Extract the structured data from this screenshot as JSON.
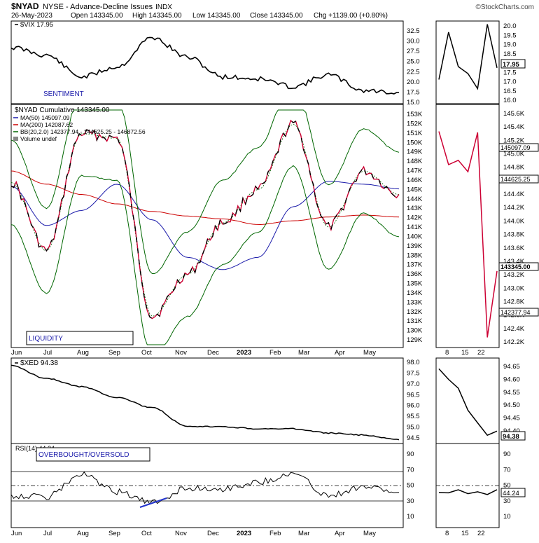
{
  "header": {
    "symbol": "$NYAD",
    "name": "NYSE - Advance-Decline Issues",
    "exchange": "INDX",
    "date": "26-May-2023",
    "open": "Open 143345.00",
    "high": "High 143345.00",
    "low": "Low 143345.00",
    "close": "Close 143345.00",
    "chg": "Chg +1139.00 (+0.80%)",
    "watermark": "©StockCharts.com"
  },
  "panels": {
    "vix": {
      "legend": "$VIX 17.95",
      "tag": "SENTIMENT",
      "last_label": "17.95",
      "ticks_main": [
        "32.5",
        "30.0",
        "27.5",
        "25.0",
        "22.5",
        "20.0",
        "17.5",
        "15.0"
      ],
      "ticks_zoom": [
        "20.0",
        "19.5",
        "19.0",
        "18.5",
        "18.0",
        "17.5",
        "17.0",
        "16.5",
        "16.0"
      ]
    },
    "nyad": {
      "legend_title": "$NYAD Cumulative 143345.00",
      "legend_ma50": "MA(50) 145097.09",
      "legend_ma200": "MA(200) 142087.62",
      "legend_bb": "BB(20,2.0) 142377.94 - 144625.25 - 146872.56",
      "legend_vol": "Volume undef",
      "tag": "LIQUIDITY",
      "ticks_main": [
        "153K",
        "152K",
        "151K",
        "150K",
        "149K",
        "148K",
        "147K",
        "146K",
        "145K",
        "144K",
        "143K",
        "142K",
        "141K",
        "140K",
        "139K",
        "138K",
        "137K",
        "136K",
        "135K",
        "134K",
        "133K",
        "132K",
        "131K",
        "130K",
        "129K"
      ],
      "ticks_zoom": [
        "145.6K",
        "145.4K",
        "145.2K",
        "145.0K",
        "144.8K",
        "144.6K",
        "144.4K",
        "144.2K",
        "144.0K",
        "143.8K",
        "143.6K",
        "143.4K",
        "143.2K",
        "143.0K",
        "142.8K",
        "142.6K",
        "142.4K",
        "142.2K"
      ],
      "zoom_labels": [
        "145097.09",
        "144625.25",
        "143345.00",
        "142377.94"
      ]
    },
    "xed": {
      "legend": "$XED 94.38",
      "last_label": "94.38",
      "ticks_main": [
        "98.0",
        "97.5",
        "97.0",
        "96.5",
        "96.0",
        "95.5",
        "95.0",
        "94.5"
      ],
      "ticks_zoom": [
        "94.65",
        "94.60",
        "94.55",
        "94.50",
        "94.45",
        "94.40"
      ]
    },
    "rsi": {
      "legend": "RSI(14) 44.24",
      "tag": "OVERBOUGHT/OVERSOLD",
      "last_label": "44.24",
      "ticks": [
        "90",
        "70",
        "50",
        "30",
        "10"
      ]
    }
  },
  "x_axis": {
    "main": [
      "Jun",
      "Jul",
      "Aug",
      "Sep",
      "Oct",
      "Nov",
      "Dec",
      "2023",
      "Feb",
      "Mar",
      "Apr",
      "May"
    ],
    "zoom": [
      "8",
      "15",
      "22"
    ]
  },
  "colors": {
    "price": "#000000",
    "ad_line": "#cc0033",
    "ma50": "#1a1aaa",
    "ma200": "#cc0000",
    "bb": "#006600",
    "rsi_fill_overbought": "#2e7d32",
    "rsi_fill_oversold": "#8b0000",
    "trendline": "#2233cc",
    "tag_text": "#1a1aaa"
  },
  "chart_data": [
    {
      "type": "line",
      "title": "$VIX 17.95",
      "x": [
        "Jun",
        "Jul",
        "Aug",
        "Sep",
        "Oct",
        "Nov",
        "Dec",
        "2023",
        "Feb",
        "Mar",
        "Apr",
        "May"
      ],
      "series": [
        {
          "name": "$VIX",
          "values": [
            29.0,
            27.0,
            21.5,
            24.0,
            31.5,
            26.5,
            21.5,
            21.0,
            19.0,
            22.0,
            18.0,
            17.5
          ]
        }
      ],
      "ylim": [
        15.0,
        35.0
      ]
    },
    {
      "type": "line",
      "title": "$NYAD Cumulative 143345.00",
      "x": [
        "Jun",
        "Jul",
        "Aug",
        "Sep",
        "Oct",
        "Nov",
        "Dec",
        "2023",
        "Feb",
        "Mar",
        "Apr",
        "May"
      ],
      "series": [
        {
          "name": "$NYAD Cumulative",
          "values": [
            145800,
            138500,
            151000,
            150500,
            131500,
            136000,
            141500,
            145000,
            152000,
            141000,
            147000,
            144500
          ]
        },
        {
          "name": "MA(50)",
          "values": [
            145400,
            141200,
            142800,
            145600,
            141800,
            137800,
            136500,
            137800,
            143200,
            145900,
            145600,
            145100
          ]
        },
        {
          "name": "MA(200)",
          "values": [
            147000,
            145600,
            144500,
            143500,
            142700,
            142200,
            141900,
            141300,
            141700,
            142100,
            142300,
            142100
          ]
        }
      ],
      "ylim": [
        128500,
        153500
      ]
    },
    {
      "type": "line",
      "title": "$XED 94.38",
      "x": [
        "Jun",
        "Jul",
        "Aug",
        "Sep",
        "Oct",
        "Nov",
        "Dec",
        "2023",
        "Feb",
        "Mar",
        "Apr",
        "May"
      ],
      "series": [
        {
          "name": "$XED",
          "values": [
            97.9,
            97.3,
            96.9,
            96.4,
            95.9,
            95.0,
            95.0,
            94.9,
            94.9,
            94.7,
            94.6,
            94.38
          ]
        }
      ],
      "ylim": [
        94.3,
        98.1
      ]
    },
    {
      "type": "line",
      "title": "RSI(14) 44.24",
      "x": [
        "Jun",
        "Jul",
        "Aug",
        "Sep",
        "Oct",
        "Nov",
        "Dec",
        "2023",
        "Feb",
        "Mar",
        "Apr",
        "May"
      ],
      "series": [
        {
          "name": "RSI(14)",
          "values": [
            40,
            38,
            68,
            45,
            30,
            50,
            49,
            58,
            69,
            40,
            52,
            44.24
          ]
        }
      ],
      "ylim": [
        0,
        100
      ]
    }
  ]
}
